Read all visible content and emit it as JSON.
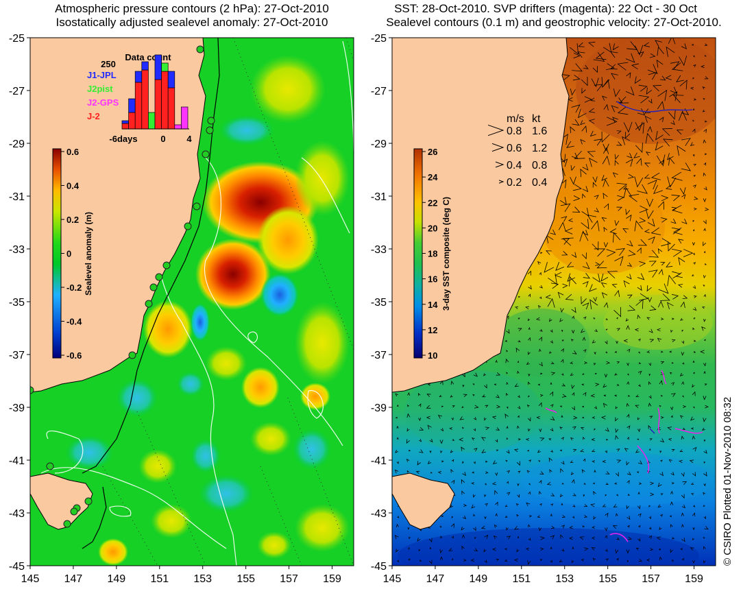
{
  "left_panel": {
    "title_line1": "Atmospheric pressure contours (2 hPa): 27-Oct-2010",
    "title_line2": "Isostatically adjusted sealevel anomaly: 27-Oct-2010",
    "lat_ticks": [
      "-25",
      "-27",
      "-29",
      "-31",
      "-33",
      "-35",
      "-37",
      "-39",
      "-41",
      "-43",
      "-45"
    ],
    "lon_ticks": [
      "145",
      "147",
      "149",
      "151",
      "153",
      "155",
      "157",
      "159"
    ],
    "colorbar": {
      "label": "Sealevel anomaly (m)",
      "ticks": [
        "0.6",
        "0.4",
        "0.2",
        "0",
        "-0.2",
        "-0.4",
        "-0.6"
      ]
    },
    "data_count": {
      "title": "Data count",
      "ymax_label": "250",
      "xlabels": [
        "-6days",
        "0",
        "4"
      ],
      "legend": [
        {
          "label": "J1-JPL",
          "color": "#1f2bff"
        },
        {
          "label": "J2pist",
          "color": "#33ee33"
        },
        {
          "label": "J2-GPS",
          "color": "#ff33ff"
        },
        {
          "label": "J-2",
          "color": "#ff2020"
        }
      ],
      "bars": [
        {
          "day": -6,
          "j2": 20,
          "j1": 10,
          "j2pist": 0,
          "j2gps": 0
        },
        {
          "day": -5,
          "j2": 60,
          "j1": 50,
          "j2pist": 0,
          "j2gps": 0
        },
        {
          "day": -4,
          "j2": 170,
          "j1": 40,
          "j2pist": 0,
          "j2gps": 0
        },
        {
          "day": -3,
          "j2": 215,
          "j1": 30,
          "j2pist": 0,
          "j2gps": 0
        },
        {
          "day": -2,
          "j2": 0,
          "j1": 0,
          "j2pist": 60,
          "j2gps": 0
        },
        {
          "day": -1,
          "j2": 180,
          "j1": 90,
          "j2pist": 0,
          "j2gps": 0
        },
        {
          "day": 0,
          "j2": 210,
          "j1": 0,
          "j2pist": 30,
          "j2gps": 0
        },
        {
          "day": 1,
          "j2": 150,
          "j1": 60,
          "j2pist": 0,
          "j2gps": 0
        },
        {
          "day": 2,
          "j2": 0,
          "j1": 0,
          "j2pist": 0,
          "j2gps": 15
        },
        {
          "day": 3,
          "j2": 0,
          "j1": 0,
          "j2pist": 0,
          "j2gps": 80
        }
      ]
    }
  },
  "right_panel": {
    "title_line1": "SST: 28-Oct-2010. SVP drifters (magenta): 22 Oct - 30 Oct",
    "title_line2": "Sealevel contours (0.1 m) and geostrophic velocity: 27-Oct-2010.",
    "lat_ticks": [
      "-25",
      "-27",
      "-29",
      "-31",
      "-33",
      "-35",
      "-37",
      "-39",
      "-41",
      "-43",
      "-45"
    ],
    "lon_ticks": [
      "145",
      "147",
      "149",
      "151",
      "153",
      "155",
      "157",
      "159"
    ],
    "colorbar": {
      "label": "3-day SST composite (deg C)",
      "ticks": [
        "26",
        "24",
        "22",
        "20",
        "18",
        "16",
        "14",
        "12",
        "10"
      ]
    },
    "velocity_key": {
      "header_ms": "m/s",
      "header_kt": "kt",
      "rows": [
        {
          "ms": "0.8",
          "kt": "1.6"
        },
        {
          "ms": "0.6",
          "kt": "1.2"
        },
        {
          "ms": "0.4",
          "kt": "0.8"
        },
        {
          "ms": "0.2",
          "kt": "0.4"
        }
      ]
    }
  },
  "copyright": "© CSIRO Plotted 01-Nov-2010 08:32",
  "colors": {
    "land": "#fbc9a0",
    "sla_ramp": [
      "#00007a",
      "#0050e0",
      "#20b0ff",
      "#00cc22",
      "#33dd11",
      "#c8e600",
      "#ffcc00",
      "#ff8800",
      "#d82000",
      "#8a0000"
    ],
    "sst_ramp": [
      "#050070",
      "#0030c8",
      "#0090e8",
      "#10b0a0",
      "#20c060",
      "#33cc33",
      "#88d822",
      "#e0e000",
      "#ffb000",
      "#f07000",
      "#c04000"
    ]
  }
}
